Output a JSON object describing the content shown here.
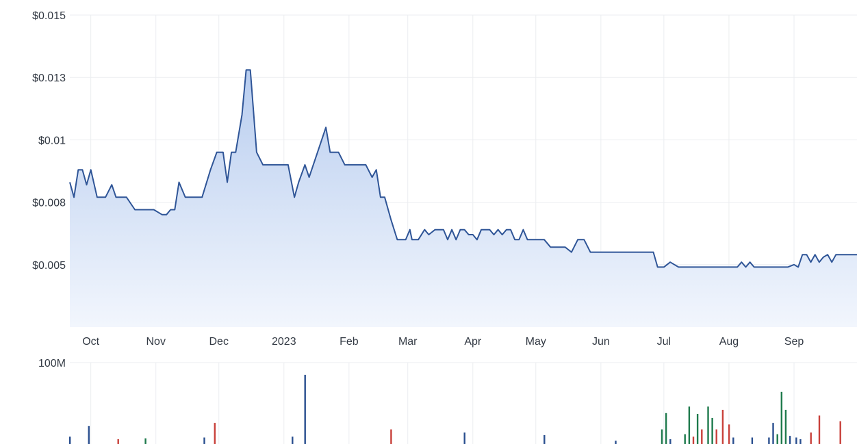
{
  "chart_data": {
    "type": "area",
    "price": {
      "y_ticks": [
        {
          "value": 0.015,
          "label": "$0.015"
        },
        {
          "value": 0.0125,
          "label": "$0.013"
        },
        {
          "value": 0.01,
          "label": "$0.01"
        },
        {
          "value": 0.0075,
          "label": "$0.008"
        },
        {
          "value": 0.005,
          "label": "$0.005"
        }
      ],
      "ylim": [
        0.0025,
        0.015
      ],
      "x_ticks": [
        {
          "day": 10,
          "label": "Oct"
        },
        {
          "day": 41,
          "label": "Nov"
        },
        {
          "day": 71,
          "label": "Dec"
        },
        {
          "day": 102,
          "label": "2023"
        },
        {
          "day": 133,
          "label": "Feb"
        },
        {
          "day": 161,
          "label": "Mar"
        },
        {
          "day": 192,
          "label": "Apr"
        },
        {
          "day": 222,
          "label": "May"
        },
        {
          "day": 253,
          "label": "Jun"
        },
        {
          "day": 283,
          "label": "Jul"
        },
        {
          "day": 314,
          "label": "Aug"
        },
        {
          "day": 345,
          "label": "Sep"
        }
      ],
      "xlim": [
        0,
        375
      ],
      "points": [
        [
          0,
          0.0083
        ],
        [
          2,
          0.0077
        ],
        [
          4,
          0.0088
        ],
        [
          6,
          0.0088
        ],
        [
          8,
          0.0082
        ],
        [
          10,
          0.0088
        ],
        [
          13,
          0.0077
        ],
        [
          17,
          0.0077
        ],
        [
          20,
          0.0082
        ],
        [
          22,
          0.0077
        ],
        [
          27,
          0.0077
        ],
        [
          31,
          0.0072
        ],
        [
          40,
          0.0072
        ],
        [
          44,
          0.007
        ],
        [
          46,
          0.007
        ],
        [
          48,
          0.0072
        ],
        [
          50,
          0.0072
        ],
        [
          52,
          0.0083
        ],
        [
          55,
          0.0077
        ],
        [
          63,
          0.0077
        ],
        [
          67,
          0.0088
        ],
        [
          70,
          0.0095
        ],
        [
          73,
          0.0095
        ],
        [
          75,
          0.0083
        ],
        [
          77,
          0.0095
        ],
        [
          79,
          0.0095
        ],
        [
          82,
          0.011
        ],
        [
          84,
          0.0128
        ],
        [
          86,
          0.0128
        ],
        [
          89,
          0.0095
        ],
        [
          92,
          0.009
        ],
        [
          98,
          0.009
        ],
        [
          104,
          0.009
        ],
        [
          107,
          0.0077
        ],
        [
          109,
          0.0083
        ],
        [
          112,
          0.009
        ],
        [
          114,
          0.0085
        ],
        [
          118,
          0.0095
        ],
        [
          122,
          0.0105
        ],
        [
          124,
          0.0095
        ],
        [
          128,
          0.0095
        ],
        [
          131,
          0.009
        ],
        [
          134,
          0.009
        ],
        [
          138,
          0.009
        ],
        [
          141,
          0.009
        ],
        [
          144,
          0.0085
        ],
        [
          146,
          0.0088
        ],
        [
          148,
          0.0077
        ],
        [
          150,
          0.0077
        ],
        [
          153,
          0.0068
        ],
        [
          156,
          0.006
        ],
        [
          160,
          0.006
        ],
        [
          162,
          0.0064
        ],
        [
          163,
          0.006
        ],
        [
          166,
          0.006
        ],
        [
          169,
          0.0064
        ],
        [
          171,
          0.0062
        ],
        [
          174,
          0.0064
        ],
        [
          178,
          0.0064
        ],
        [
          180,
          0.006
        ],
        [
          182,
          0.0064
        ],
        [
          184,
          0.006
        ],
        [
          186,
          0.0064
        ],
        [
          188,
          0.0064
        ],
        [
          190,
          0.0062
        ],
        [
          192,
          0.0062
        ],
        [
          194,
          0.006
        ],
        [
          196,
          0.0064
        ],
        [
          200,
          0.0064
        ],
        [
          202,
          0.0062
        ],
        [
          204,
          0.0064
        ],
        [
          206,
          0.0062
        ],
        [
          208,
          0.0064
        ],
        [
          210,
          0.0064
        ],
        [
          212,
          0.006
        ],
        [
          214,
          0.006
        ],
        [
          216,
          0.0064
        ],
        [
          218,
          0.006
        ],
        [
          220,
          0.006
        ],
        [
          226,
          0.006
        ],
        [
          229,
          0.0057
        ],
        [
          236,
          0.0057
        ],
        [
          239,
          0.0055
        ],
        [
          242,
          0.006
        ],
        [
          245,
          0.006
        ],
        [
          248,
          0.0055
        ],
        [
          252,
          0.0055
        ],
        [
          263,
          0.0055
        ],
        [
          278,
          0.0055
        ],
        [
          280,
          0.0049
        ],
        [
          283,
          0.0049
        ],
        [
          286,
          0.0051
        ],
        [
          290,
          0.0049
        ],
        [
          300,
          0.0049
        ],
        [
          318,
          0.0049
        ],
        [
          320,
          0.0051
        ],
        [
          322,
          0.0049
        ],
        [
          324,
          0.0051
        ],
        [
          326,
          0.0049
        ],
        [
          330,
          0.0049
        ],
        [
          333,
          0.0049
        ],
        [
          336,
          0.0049
        ],
        [
          338,
          0.0049
        ],
        [
          340,
          0.0049
        ],
        [
          342,
          0.0049
        ],
        [
          345,
          0.005
        ],
        [
          347,
          0.0049
        ],
        [
          349,
          0.0054
        ],
        [
          351,
          0.0054
        ],
        [
          353,
          0.0051
        ],
        [
          355,
          0.0054
        ],
        [
          357,
          0.0051
        ],
        [
          359,
          0.0053
        ],
        [
          361,
          0.0054
        ],
        [
          363,
          0.0051
        ],
        [
          365,
          0.0054
        ],
        [
          367,
          0.0054
        ],
        [
          369,
          0.0054
        ],
        [
          371,
          0.0054
        ],
        [
          373,
          0.0054
        ],
        [
          375,
          0.0054
        ]
      ]
    },
    "volume": {
      "y_ticks": [
        {
          "value": 100,
          "label": "100M"
        }
      ],
      "ylim": [
        0,
        100
      ],
      "colors": {
        "up": "#1e7a4c",
        "down": "#c8403a",
        "flat": "#2a4f8f"
      },
      "bars": [
        {
          "day": 0,
          "value": 9,
          "dir": "flat"
        },
        {
          "day": 9,
          "value": 22,
          "dir": "flat"
        },
        {
          "day": 23,
          "value": 6,
          "dir": "down"
        },
        {
          "day": 36,
          "value": 7,
          "dir": "up"
        },
        {
          "day": 64,
          "value": 8,
          "dir": "flat"
        },
        {
          "day": 69,
          "value": 26,
          "dir": "down"
        },
        {
          "day": 106,
          "value": 9,
          "dir": "flat"
        },
        {
          "day": 112,
          "value": 85,
          "dir": "flat"
        },
        {
          "day": 153,
          "value": 18,
          "dir": "down"
        },
        {
          "day": 188,
          "value": 14,
          "dir": "flat"
        },
        {
          "day": 226,
          "value": 11,
          "dir": "flat"
        },
        {
          "day": 260,
          "value": 4,
          "dir": "flat"
        },
        {
          "day": 282,
          "value": 18,
          "dir": "up"
        },
        {
          "day": 284,
          "value": 38,
          "dir": "up"
        },
        {
          "day": 286,
          "value": 6,
          "dir": "flat"
        },
        {
          "day": 293,
          "value": 12,
          "dir": "up"
        },
        {
          "day": 295,
          "value": 46,
          "dir": "up"
        },
        {
          "day": 297,
          "value": 9,
          "dir": "down"
        },
        {
          "day": 299,
          "value": 37,
          "dir": "up"
        },
        {
          "day": 301,
          "value": 18,
          "dir": "down"
        },
        {
          "day": 304,
          "value": 46,
          "dir": "up"
        },
        {
          "day": 306,
          "value": 32,
          "dir": "up"
        },
        {
          "day": 308,
          "value": 18,
          "dir": "down"
        },
        {
          "day": 311,
          "value": 42,
          "dir": "down"
        },
        {
          "day": 314,
          "value": 24,
          "dir": "down"
        },
        {
          "day": 316,
          "value": 8,
          "dir": "flat"
        },
        {
          "day": 325,
          "value": 8,
          "dir": "flat"
        },
        {
          "day": 333,
          "value": 8,
          "dir": "flat"
        },
        {
          "day": 335,
          "value": 26,
          "dir": "flat"
        },
        {
          "day": 337,
          "value": 12,
          "dir": "up"
        },
        {
          "day": 339,
          "value": 64,
          "dir": "up"
        },
        {
          "day": 341,
          "value": 42,
          "dir": "up"
        },
        {
          "day": 343,
          "value": 10,
          "dir": "flat"
        },
        {
          "day": 346,
          "value": 8,
          "dir": "flat"
        },
        {
          "day": 348,
          "value": 6,
          "dir": "flat"
        },
        {
          "day": 353,
          "value": 14,
          "dir": "down"
        },
        {
          "day": 357,
          "value": 35,
          "dir": "down"
        },
        {
          "day": 367,
          "value": 28,
          "dir": "down"
        }
      ]
    },
    "colors": {
      "line": "#2f5597",
      "area_top": "#b8cdef",
      "area_bottom": "#f2f6fd",
      "grid": "#ebedf0",
      "text": "#333a44"
    },
    "grid": true
  }
}
